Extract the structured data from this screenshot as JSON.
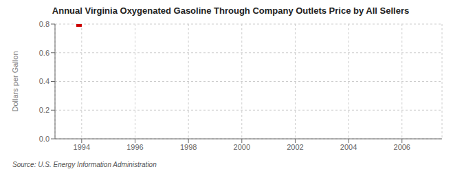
{
  "chart_data": {
    "type": "scatter",
    "title": "Annual Virginia Oxygenated Gasoline Through Company Outlets Price by All Sellers",
    "ylabel": "Dollars per Gallon",
    "annotations": [
      "Source: U.S. Energy Information Administration"
    ],
    "x": [
      1993.9
    ],
    "values": [
      0.8
    ],
    "color": "#cc0000",
    "marker": "square",
    "xlim": [
      1993.0,
      2007.5
    ],
    "ylim": [
      0.0,
      0.8
    ],
    "xticks": [
      1994,
      1996,
      1998,
      2000,
      2002,
      2004,
      2006
    ],
    "yticks": [
      {
        "value": 0.0,
        "label": "0.0"
      },
      0.2,
      0.4,
      0.6,
      0.8
    ],
    "grid": true
  }
}
